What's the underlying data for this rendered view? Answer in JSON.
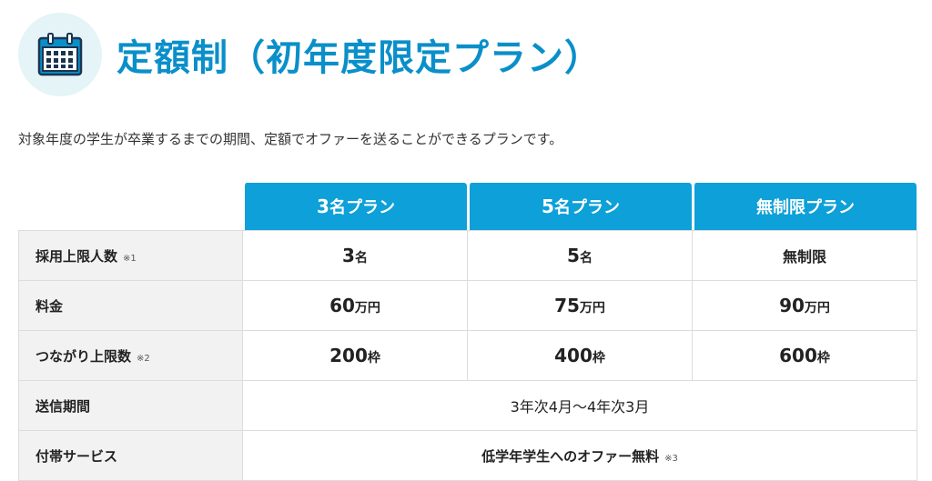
{
  "header": {
    "title": "定額制（初年度限定プラン）",
    "icon": "calendar-icon",
    "accent_color": "#0a8fc9",
    "icon_bg_color": "#e4f4f7"
  },
  "description": "対象年度の学生が卒業するまでの期間、定額でオファーを送ることができるプランです。",
  "plans": [
    {
      "num": "3",
      "label": "名プラン"
    },
    {
      "num": "5",
      "label": "名プラン"
    },
    {
      "num": "",
      "label": "無制限プラン"
    }
  ],
  "header_color": "#0ea0d8",
  "rows": {
    "hire_limit": {
      "label": "採用上限人数",
      "note": "※1",
      "values": [
        {
          "num": "3",
          "unit": "名"
        },
        {
          "num": "5",
          "unit": "名"
        },
        {
          "num": "",
          "unit": "無制限"
        }
      ]
    },
    "price": {
      "label": "料金",
      "values": [
        {
          "num": "60",
          "unit": "万円"
        },
        {
          "num": "75",
          "unit": "万円"
        },
        {
          "num": "90",
          "unit": "万円"
        }
      ]
    },
    "connection_limit": {
      "label": "つながり上限数",
      "note": "※2",
      "values": [
        {
          "num": "200",
          "unit": "枠"
        },
        {
          "num": "400",
          "unit": "枠"
        },
        {
          "num": "600",
          "unit": "枠"
        }
      ]
    },
    "send_period": {
      "label": "送信期間",
      "value": "3年次4月〜4年次3月"
    },
    "extra_service": {
      "label": "付帯サービス",
      "value": "低学年学生へのオファー無料",
      "note": "※3"
    }
  }
}
